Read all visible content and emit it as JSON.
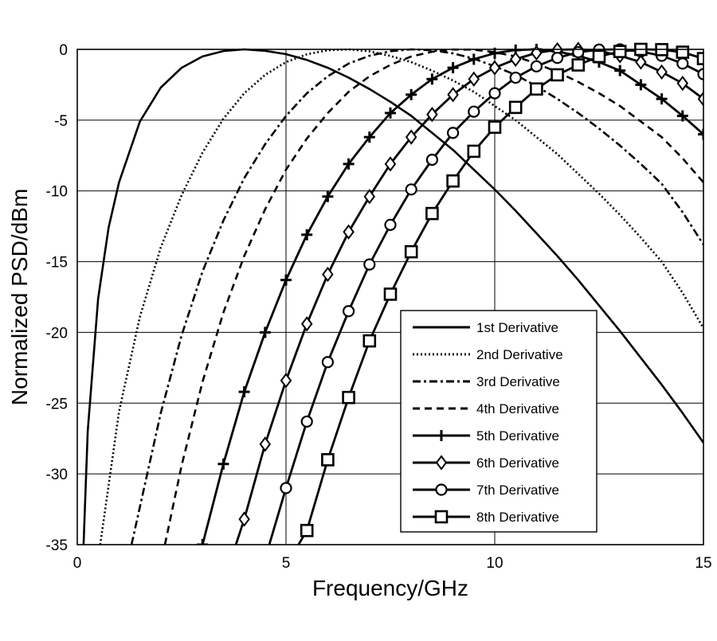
{
  "chart_data": {
    "type": "line",
    "title": "",
    "xlabel": "Frequency/GHz",
    "ylabel": "Normalized PSD/dBm",
    "xlim": [
      0,
      15
    ],
    "ylim": [
      -35,
      0
    ],
    "xticks": [
      0,
      5,
      10,
      15
    ],
    "yticks": [
      0,
      -5,
      -10,
      -15,
      -20,
      -25,
      -30,
      -35
    ],
    "xtick_labels": [
      "0",
      "5",
      "10",
      "15"
    ],
    "ytick_labels": [
      "0",
      "-5",
      "-10",
      "-15",
      "-20",
      "-25",
      "-30",
      "-35"
    ],
    "grid": true,
    "legend_position": "bottom-right",
    "series": [
      {
        "name": "1st Derivative",
        "line_style": "solid",
        "marker": "none",
        "x": [
          0.15,
          0.25,
          0.5,
          0.75,
          1,
          1.5,
          2,
          2.5,
          3,
          3.5,
          4,
          4.5,
          5,
          5.5,
          6,
          6.5,
          7,
          7.5,
          8,
          8.5,
          9,
          9.5,
          10,
          10.5,
          11,
          11.5,
          12,
          12.5,
          13,
          13.5,
          14,
          14.5,
          15
        ],
        "values": [
          -35,
          -27,
          -17.6,
          -12.6,
          -9.4,
          -5.1,
          -2.7,
          -1.3,
          -0.5,
          -0.12,
          0,
          -0.1,
          -0.34,
          -0.75,
          -1.3,
          -2.0,
          -2.8,
          -3.7,
          -4.7,
          -5.9,
          -7.1,
          -8.5,
          -9.9,
          -11.4,
          -13.0,
          -14.6,
          -16.3,
          -18.1,
          -19.9,
          -21.8,
          -23.7,
          -25.7,
          -27.8
        ]
      },
      {
        "name": "2nd Derivative",
        "line_style": "dotted",
        "marker": "none",
        "x": [
          0.55,
          1,
          1.5,
          2,
          2.5,
          3,
          3.5,
          4,
          4.5,
          5,
          5.5,
          6,
          6.5,
          7,
          7.5,
          8,
          8.5,
          9,
          9.5,
          10,
          10.5,
          11,
          11.5,
          12,
          12.5,
          13,
          13.5,
          14,
          14.5,
          15
        ],
        "values": [
          -35,
          -25.6,
          -18.9,
          -14.0,
          -10.3,
          -7.3,
          -4.9,
          -3.1,
          -1.8,
          -0.9,
          -0.35,
          -0.06,
          0,
          -0.14,
          -0.46,
          -0.9,
          -1.5,
          -2.2,
          -3.0,
          -4.0,
          -5.0,
          -6.2,
          -7.4,
          -8.8,
          -10.2,
          -11.7,
          -13.3,
          -15.0,
          -17.2,
          -19.7
        ]
      },
      {
        "name": "3rd Derivative",
        "line_style": "dashdot",
        "marker": "none",
        "x": [
          1.3,
          2,
          2.5,
          3,
          3.5,
          4,
          4.5,
          5,
          5.5,
          6,
          6.5,
          7,
          7.5,
          8,
          8.5,
          9,
          9.5,
          10,
          10.5,
          11,
          11.5,
          12,
          12.5,
          13,
          13.5,
          14,
          14.5,
          15
        ],
        "values": [
          -35,
          -25.7,
          -20.2,
          -15.7,
          -12.1,
          -9.1,
          -6.7,
          -4.7,
          -3.1,
          -1.9,
          -1.0,
          -0.45,
          -0.13,
          0,
          -0.06,
          -0.28,
          -0.66,
          -1.2,
          -1.8,
          -2.6,
          -3.5,
          -4.5,
          -5.6,
          -6.8,
          -8.1,
          -9.5,
          -11.5,
          -13.8
        ]
      },
      {
        "name": "4th Derivative",
        "line_style": "dashed",
        "marker": "none",
        "x": [
          2.1,
          2.5,
          3,
          3.5,
          4,
          4.5,
          5,
          5.5,
          6,
          6.5,
          7,
          7.5,
          8,
          8.5,
          9,
          9.5,
          10,
          10.5,
          11,
          11.5,
          12,
          12.5,
          13,
          13.5,
          14,
          14.5,
          15
        ],
        "values": [
          -35,
          -29.4,
          -23.5,
          -18.6,
          -14.6,
          -11.3,
          -8.5,
          -6.3,
          -4.5,
          -3.0,
          -1.9,
          -1.1,
          -0.5,
          -0.17,
          -0.01,
          -0.02,
          -0.2,
          -0.5,
          -1.0,
          -1.6,
          -2.3,
          -3.1,
          -4.0,
          -5.1,
          -6.2,
          -7.7,
          -9.4
        ]
      },
      {
        "name": "5th Derivative",
        "line_style": "solid",
        "marker": "plus",
        "x": [
          3,
          3.5,
          4,
          4.5,
          5,
          5.5,
          6,
          6.5,
          7,
          7.5,
          8,
          8.5,
          9,
          9.5,
          10,
          10.5,
          11,
          11.5,
          12,
          12.5,
          13,
          13.5,
          14,
          14.5,
          15
        ],
        "values": [
          -35,
          -29.3,
          -24.2,
          -20.0,
          -16.3,
          -13.1,
          -10.4,
          -8.1,
          -6.2,
          -4.5,
          -3.2,
          -2.1,
          -1.3,
          -0.7,
          -0.27,
          -0.05,
          0,
          -0.15,
          -0.45,
          -0.9,
          -1.5,
          -2.5,
          -3.5,
          -4.7,
          -6.0
        ]
      },
      {
        "name": "6th Derivative",
        "line_style": "solid",
        "marker": "diamond",
        "x": [
          3.8,
          4,
          4.5,
          5,
          5.5,
          6,
          6.5,
          7,
          7.5,
          8,
          8.5,
          9,
          9.5,
          10,
          10.5,
          11,
          11.5,
          12,
          12.5,
          13,
          13.5,
          14,
          14.5,
          15
        ],
        "values": [
          -35,
          -33.2,
          -27.9,
          -23.4,
          -19.4,
          -15.9,
          -12.9,
          -10.4,
          -8.1,
          -6.2,
          -4.6,
          -3.2,
          -2.1,
          -1.3,
          -0.7,
          -0.25,
          -0.03,
          0,
          -0.1,
          -0.45,
          -0.9,
          -1.6,
          -2.4,
          -3.5
        ]
      },
      {
        "name": "7th Derivative",
        "line_style": "solid",
        "marker": "circle",
        "x": [
          4.6,
          5,
          5.5,
          6,
          6.5,
          7,
          7.5,
          8,
          8.5,
          9,
          9.5,
          10,
          10.5,
          11,
          11.5,
          12,
          12.5,
          13,
          13.5,
          14,
          14.5,
          15
        ],
        "values": [
          -35,
          -31.0,
          -26.3,
          -22.1,
          -18.5,
          -15.2,
          -12.4,
          -9.9,
          -7.8,
          -5.9,
          -4.4,
          -3.1,
          -2.0,
          -1.2,
          -0.6,
          -0.2,
          -0.02,
          0,
          -0.15,
          -0.45,
          -1.0,
          -1.75
        ]
      },
      {
        "name": "8th Derivative",
        "line_style": "solid",
        "marker": "square",
        "x": [
          5.3,
          5.5,
          6,
          6.5,
          7,
          7.5,
          8,
          8.5,
          9,
          9.5,
          10,
          10.5,
          11,
          11.5,
          12,
          12.5,
          13,
          13.5,
          14,
          14.5,
          15
        ],
        "values": [
          -35,
          -34.0,
          -29.0,
          -24.6,
          -20.6,
          -17.3,
          -14.3,
          -11.6,
          -9.3,
          -7.2,
          -5.5,
          -4.1,
          -2.8,
          -1.8,
          -1.1,
          -0.5,
          -0.15,
          0,
          -0.02,
          -0.2,
          -0.65
        ]
      }
    ]
  }
}
